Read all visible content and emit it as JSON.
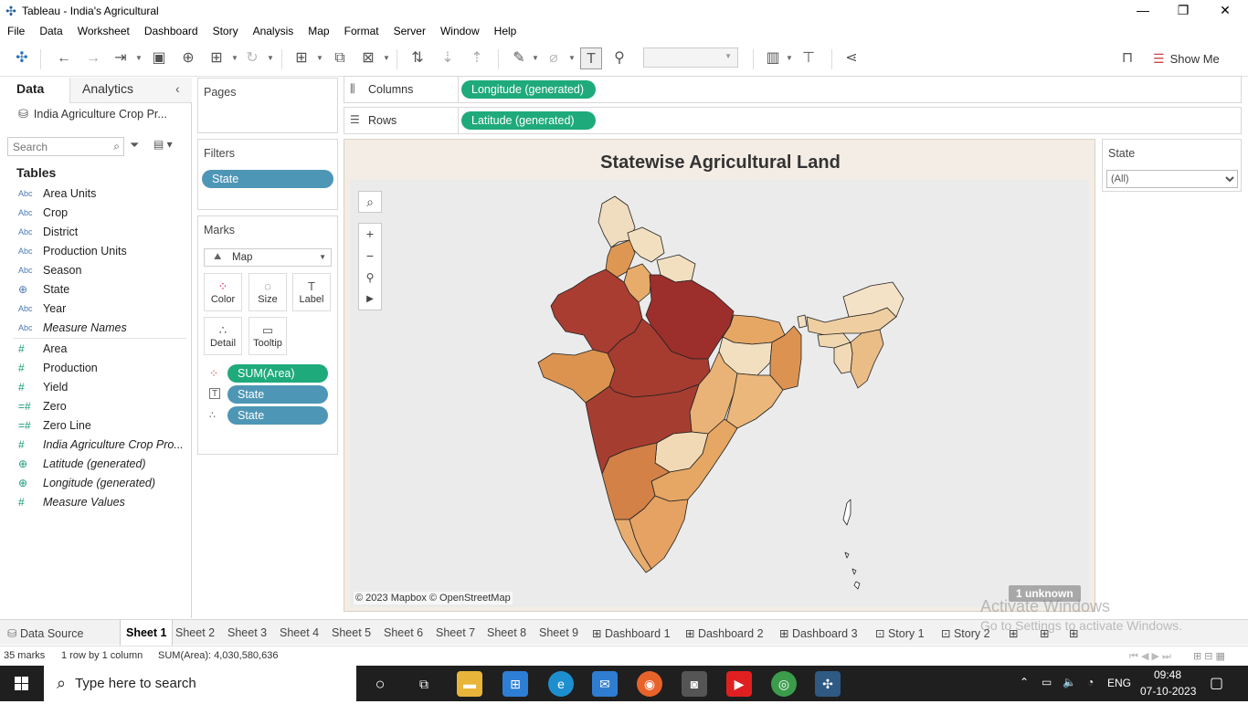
{
  "window": {
    "title": "Tableau - India's Agricultural"
  },
  "menu": [
    "File",
    "Data",
    "Worksheet",
    "Dashboard",
    "Story",
    "Analysis",
    "Map",
    "Format",
    "Server",
    "Window",
    "Help"
  ],
  "toolbar": {
    "show_me_label": "Show Me"
  },
  "left_pane": {
    "tab_data": "Data",
    "tab_analytics": "Analytics",
    "datasource": "India Agriculture Crop Pr...",
    "search_placeholder": "Search",
    "tables_heading": "Tables",
    "dimensions": [
      {
        "type": "Abc",
        "name": "Area Units"
      },
      {
        "type": "Abc",
        "name": "Crop"
      },
      {
        "type": "Abc",
        "name": "District"
      },
      {
        "type": "Abc",
        "name": "Production Units"
      },
      {
        "type": "Abc",
        "name": "Season"
      },
      {
        "type": "⊕",
        "name": "State"
      },
      {
        "type": "Abc",
        "name": "Year"
      },
      {
        "type": "Abc",
        "name": "Measure Names"
      }
    ],
    "measures": [
      {
        "type": "#",
        "name": "Area"
      },
      {
        "type": "#",
        "name": "Production"
      },
      {
        "type": "#",
        "name": "Yield"
      },
      {
        "type": "=#",
        "name": "Zero"
      },
      {
        "type": "=#",
        "name": "Zero Line"
      },
      {
        "type": "#",
        "name": "India Agriculture Crop Pro..."
      },
      {
        "type": "⊕",
        "name": "Latitude (generated)"
      },
      {
        "type": "⊕",
        "name": "Longitude (generated)"
      },
      {
        "type": "#",
        "name": "Measure Values"
      }
    ]
  },
  "pages": {
    "title": "Pages"
  },
  "filters": {
    "title": "Filters",
    "pill": "State"
  },
  "marks": {
    "title": "Marks",
    "type": "Map",
    "buttons": [
      "Color",
      "Size",
      "Label",
      "Detail",
      "Tooltip"
    ],
    "pills": [
      "SUM(Area)",
      "State",
      "State"
    ]
  },
  "shelves": {
    "columns_label": "Columns",
    "columns_pill": "Longitude (generated)",
    "rows_label": "Rows",
    "rows_pill": "Latitude (generated)"
  },
  "viz": {
    "title": "Statewise Agricultural Land",
    "attribution": "© 2023 Mapbox © OpenStreetMap",
    "unknown_badge": "1 unknown"
  },
  "state_filter": {
    "title": "State",
    "value": "(All)"
  },
  "sheet_tabs": {
    "data_source": "Data Source",
    "tabs": [
      "Sheet 1",
      "Sheet 2",
      "Sheet 3",
      "Sheet 4",
      "Sheet 5",
      "Sheet 6",
      "Sheet 7",
      "Sheet 8",
      "Sheet 9",
      "Dashboard 1",
      "Dashboard 2",
      "Dashboard 3",
      "Story 1",
      "Story 2"
    ],
    "active": "Sheet 1"
  },
  "status": {
    "marks": "35 marks",
    "dims": "1 row by 1 column",
    "sum": "SUM(Area): 4,030,580,636"
  },
  "watermark": {
    "line1": "Activate Windows",
    "line2": "Go to Settings to activate Windows."
  },
  "taskbar": {
    "search_placeholder": "Type here to search",
    "lang": "ENG",
    "time": "09:48",
    "date": "07-10-2023"
  },
  "colors": {
    "pill_blue": "#4e96b5",
    "pill_green": "#1faa7b",
    "map_dark": "#9e2f2a",
    "map_light": "#f2dfc0"
  }
}
